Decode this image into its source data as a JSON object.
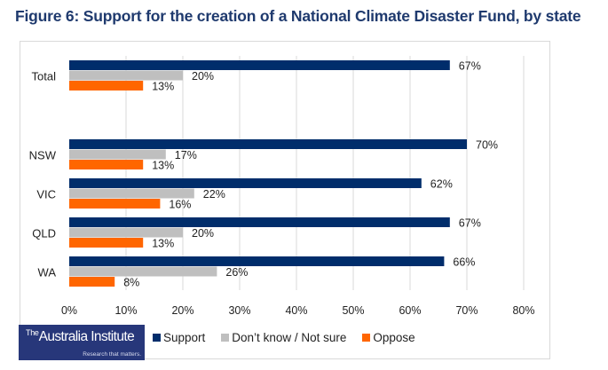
{
  "title": "Figure 6: Support for the creation of a National Climate Disaster Fund, by state",
  "logo": {
    "prefix": "The",
    "name": "Australia Institute",
    "tagline": "Research that matters."
  },
  "chart_data": {
    "type": "bar",
    "orientation": "horizontal",
    "title": "Figure 6: Support for the creation of a National Climate Disaster Fund, by state",
    "categories": [
      "Total",
      "NSW",
      "VIC",
      "QLD",
      "WA"
    ],
    "series": [
      {
        "name": "Support",
        "color": "#002d6b",
        "values": [
          67,
          70,
          62,
          67,
          66
        ]
      },
      {
        "name": "Don’t know / Not sure",
        "color": "#bfbfbf",
        "values": [
          20,
          17,
          22,
          20,
          26
        ]
      },
      {
        "name": "Oppose",
        "color": "#ff6600",
        "values": [
          13,
          13,
          16,
          13,
          8
        ]
      }
    ],
    "value_suffix": "%",
    "xlabel": "",
    "ylabel": "",
    "xlim": [
      0,
      80
    ],
    "x_ticks": [
      0,
      10,
      20,
      30,
      40,
      50,
      60,
      70,
      80
    ],
    "x_tick_labels": [
      "0%",
      "10%",
      "20%",
      "30%",
      "40%",
      "50%",
      "60%",
      "70%",
      "80%"
    ],
    "grid": true,
    "legend": "bottom"
  }
}
